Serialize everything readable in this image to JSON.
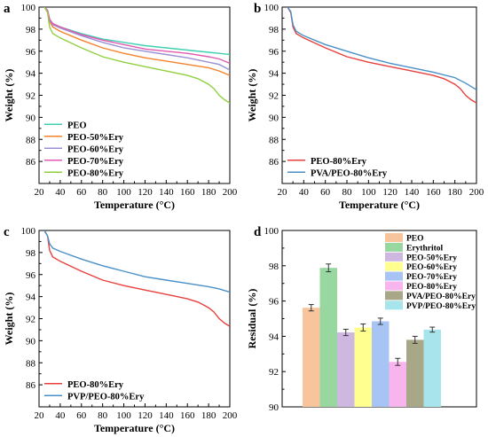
{
  "chart_data": [
    {
      "panel": "a",
      "type": "line",
      "xlabel": "Temperature (°C)",
      "ylabel": "Weight (%)",
      "xlim": [
        20,
        200
      ],
      "ylim": [
        84,
        100
      ],
      "xticks": [
        20,
        40,
        60,
        80,
        100,
        120,
        140,
        160,
        180,
        200
      ],
      "yticks": [
        86,
        88,
        90,
        92,
        94,
        96,
        98,
        100
      ],
      "legend_position": "lower-left",
      "series": [
        {
          "name": "PEO",
          "color": "#40d0b0",
          "x": [
            25,
            28,
            30,
            33,
            40,
            60,
            80,
            100,
            120,
            140,
            160,
            180,
            190,
            200
          ],
          "y": [
            100,
            99.7,
            98.9,
            98.5,
            98.2,
            97.6,
            97.1,
            96.8,
            96.5,
            96.3,
            96.1,
            95.9,
            95.8,
            95.7
          ]
        },
        {
          "name": "PEO-50%Ery",
          "color": "#f4822c",
          "x": [
            25,
            28,
            30,
            33,
            40,
            60,
            80,
            100,
            120,
            140,
            160,
            180,
            190,
            200
          ],
          "y": [
            100,
            99.6,
            98.7,
            98.2,
            97.8,
            97.0,
            96.3,
            95.8,
            95.4,
            95.1,
            94.8,
            94.5,
            94.2,
            93.8
          ]
        },
        {
          "name": "PEO-60%Ery",
          "color": "#9b8fd6",
          "x": [
            25,
            28,
            30,
            33,
            40,
            60,
            80,
            100,
            120,
            140,
            160,
            180,
            190,
            200
          ],
          "y": [
            100,
            99.7,
            98.8,
            98.4,
            98.1,
            97.4,
            96.8,
            96.3,
            96.0,
            95.7,
            95.4,
            95.0,
            94.8,
            94.3
          ]
        },
        {
          "name": "PEO-70%Ery",
          "color": "#e05ab0",
          "x": [
            25,
            28,
            30,
            33,
            40,
            60,
            80,
            100,
            120,
            140,
            160,
            180,
            190,
            200
          ],
          "y": [
            100,
            99.7,
            98.9,
            98.5,
            98.2,
            97.5,
            97.0,
            96.6,
            96.2,
            96.0,
            95.8,
            95.5,
            95.3,
            94.9
          ]
        },
        {
          "name": "PEO-80%Ery",
          "color": "#90d040",
          "x": [
            25,
            28,
            30,
            33,
            40,
            60,
            80,
            100,
            120,
            140,
            160,
            170,
            180,
            185,
            190,
            195,
            200
          ],
          "y": [
            100,
            99.5,
            98.2,
            97.6,
            97.2,
            96.3,
            95.5,
            95.0,
            94.6,
            94.2,
            93.8,
            93.5,
            93.0,
            92.6,
            92.0,
            91.6,
            91.3
          ]
        }
      ]
    },
    {
      "panel": "b",
      "type": "line",
      "xlabel": "Temperature (°C)",
      "ylabel": "Weight (%)",
      "xlim": [
        20,
        200
      ],
      "ylim": [
        84,
        100
      ],
      "xticks": [
        20,
        40,
        60,
        80,
        100,
        120,
        140,
        160,
        180,
        200
      ],
      "yticks": [
        86,
        88,
        90,
        92,
        94,
        96,
        98,
        100
      ],
      "legend_position": "lower-left",
      "series": [
        {
          "name": "PEO-80%Ery",
          "color": "#e8403c",
          "x": [
            25,
            28,
            30,
            33,
            40,
            60,
            80,
            100,
            120,
            140,
            160,
            170,
            180,
            185,
            190,
            195,
            200
          ],
          "y": [
            100,
            99.5,
            98.2,
            97.6,
            97.2,
            96.3,
            95.5,
            95.0,
            94.6,
            94.2,
            93.8,
            93.5,
            93.0,
            92.6,
            92.0,
            91.6,
            91.3
          ]
        },
        {
          "name": "PVA/PEO-80%Ery",
          "color": "#4a90c8",
          "x": [
            25,
            28,
            30,
            33,
            40,
            60,
            80,
            100,
            120,
            140,
            160,
            180,
            190,
            200
          ],
          "y": [
            100,
            99.6,
            98.4,
            97.8,
            97.4,
            96.6,
            96.0,
            95.4,
            94.9,
            94.5,
            94.1,
            93.6,
            93.1,
            92.5
          ]
        }
      ]
    },
    {
      "panel": "c",
      "type": "line",
      "xlabel": "Temperature (°C)",
      "ylabel": "Weight (%)",
      "xlim": [
        20,
        200
      ],
      "ylim": [
        84,
        100
      ],
      "xticks": [
        20,
        40,
        60,
        80,
        100,
        120,
        140,
        160,
        180,
        200
      ],
      "yticks": [
        86,
        88,
        90,
        92,
        94,
        96,
        98,
        100
      ],
      "legend_position": "lower-left",
      "series": [
        {
          "name": "PEO-80%Ery",
          "color": "#e8403c",
          "x": [
            25,
            28,
            30,
            33,
            40,
            60,
            80,
            100,
            120,
            140,
            160,
            170,
            180,
            185,
            190,
            195,
            200
          ],
          "y": [
            100,
            99.5,
            98.2,
            97.6,
            97.2,
            96.3,
            95.5,
            95.0,
            94.6,
            94.2,
            93.8,
            93.5,
            93.0,
            92.6,
            92.0,
            91.6,
            91.3
          ]
        },
        {
          "name": "PVP/PEO-80%Ery",
          "color": "#4a90c8",
          "x": [
            25,
            28,
            30,
            33,
            40,
            60,
            80,
            100,
            120,
            140,
            160,
            180,
            190,
            200
          ],
          "y": [
            100,
            99.5,
            98.8,
            98.4,
            98.1,
            97.4,
            96.8,
            96.3,
            95.8,
            95.5,
            95.2,
            94.9,
            94.7,
            94.4
          ]
        }
      ]
    },
    {
      "panel": "d",
      "type": "bar",
      "ylabel": "Residual (%)",
      "ylim": [
        90,
        100
      ],
      "yticks": [
        90,
        92,
        94,
        96,
        98,
        100
      ],
      "legend_position": "top-right",
      "categories": [
        "PEO",
        "Erythritol",
        "PEO-50%Ery",
        "PEO-60%Ery",
        "PEO-70%Ery",
        "PEO-80%Ery",
        "PVA/PEO-80%Ery",
        "PVP/PEO-80%Ery"
      ],
      "values": [
        95.62,
        97.88,
        94.22,
        94.5,
        94.85,
        92.55,
        93.8,
        94.38
      ],
      "errors": [
        0.18,
        0.22,
        0.18,
        0.2,
        0.18,
        0.2,
        0.2,
        0.14
      ],
      "colors": [
        "#f8c49c",
        "#98d8a0",
        "#cfb8e0",
        "#ffff90",
        "#a8c4f4",
        "#f8b4ec",
        "#a8a888",
        "#a8e4ec"
      ]
    }
  ]
}
